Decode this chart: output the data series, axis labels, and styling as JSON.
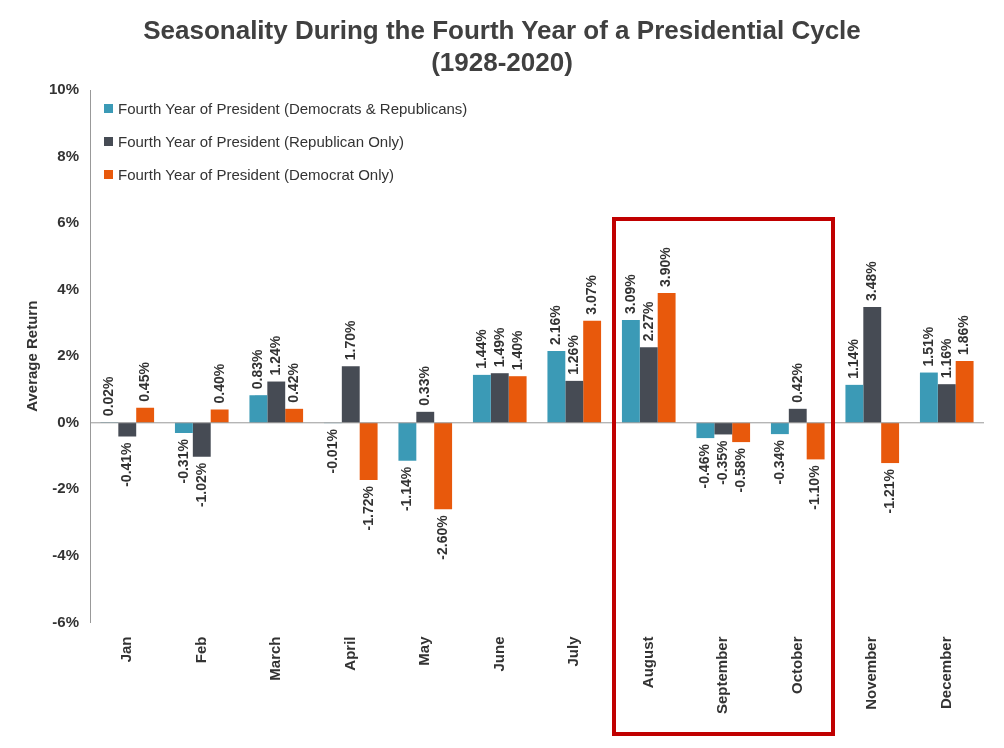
{
  "chart_data": {
    "type": "bar",
    "title": "Seasonality During the Fourth Year of a Presidential Cycle",
    "subtitle": "(1928-2020)",
    "ylabel": "Average Return",
    "categories": [
      "Jan",
      "Feb",
      "March",
      "April",
      "May",
      "June",
      "July",
      "August",
      "September",
      "October",
      "November",
      "December"
    ],
    "series": [
      {
        "name": "Fourth Year of President (Democrats & Republicans)",
        "color": "#3b9ab6",
        "values": [
          0.02,
          -0.31,
          0.83,
          -0.01,
          -1.14,
          1.44,
          2.16,
          3.09,
          -0.46,
          -0.34,
          1.14,
          1.51
        ],
        "value_labels": [
          "0.02%",
          "-0.31%",
          "0.83%",
          "-0.01%",
          "-1.14%",
          "1.44%",
          "2.16%",
          "3.09%",
          "-0.46%",
          "-0.34%",
          "1.14%",
          "1.51%"
        ]
      },
      {
        "name": "Fourth Year of President (Republican Only)",
        "color": "#464b54",
        "values": [
          -0.41,
          -1.02,
          1.24,
          1.7,
          0.33,
          1.49,
          1.26,
          2.27,
          -0.35,
          0.42,
          3.48,
          1.16
        ],
        "value_labels": [
          "-0.41%",
          "-1.02%",
          "1.24%",
          "1.70%",
          "0.33%",
          "1.49%",
          "1.26%",
          "2.27%",
          "-0.35%",
          "0.42%",
          "3.48%",
          "1.16%"
        ]
      },
      {
        "name": "Fourth Year of President (Democrat Only)",
        "color": "#e8590c",
        "values": [
          0.45,
          0.4,
          0.42,
          -1.72,
          -2.6,
          1.4,
          3.07,
          3.9,
          -0.58,
          -1.1,
          -1.21,
          1.86
        ],
        "value_labels": [
          "0.45%",
          "0.40%",
          "0.42%",
          "-1.72%",
          "-2.60%",
          "1.40%",
          "3.07%",
          "3.90%",
          "-0.58%",
          "-1.10%",
          "-1.21%",
          "1.86%"
        ]
      }
    ],
    "ylim": [
      -6,
      10
    ],
    "yticks": [
      {
        "value": -6,
        "label": "-6%"
      },
      {
        "value": -4,
        "label": "-4%"
      },
      {
        "value": -2,
        "label": "-2%"
      },
      {
        "value": 0,
        "label": "0%"
      },
      {
        "value": 2,
        "label": "2%"
      },
      {
        "value": 4,
        "label": "4%"
      },
      {
        "value": 6,
        "label": "6%"
      },
      {
        "value": 8,
        "label": "8%"
      },
      {
        "value": 10,
        "label": "10%"
      }
    ],
    "legend": "top left",
    "ref_lines": [
      {
        "axis": "y",
        "value": 0,
        "color": "#999999"
      }
    ]
  }
}
